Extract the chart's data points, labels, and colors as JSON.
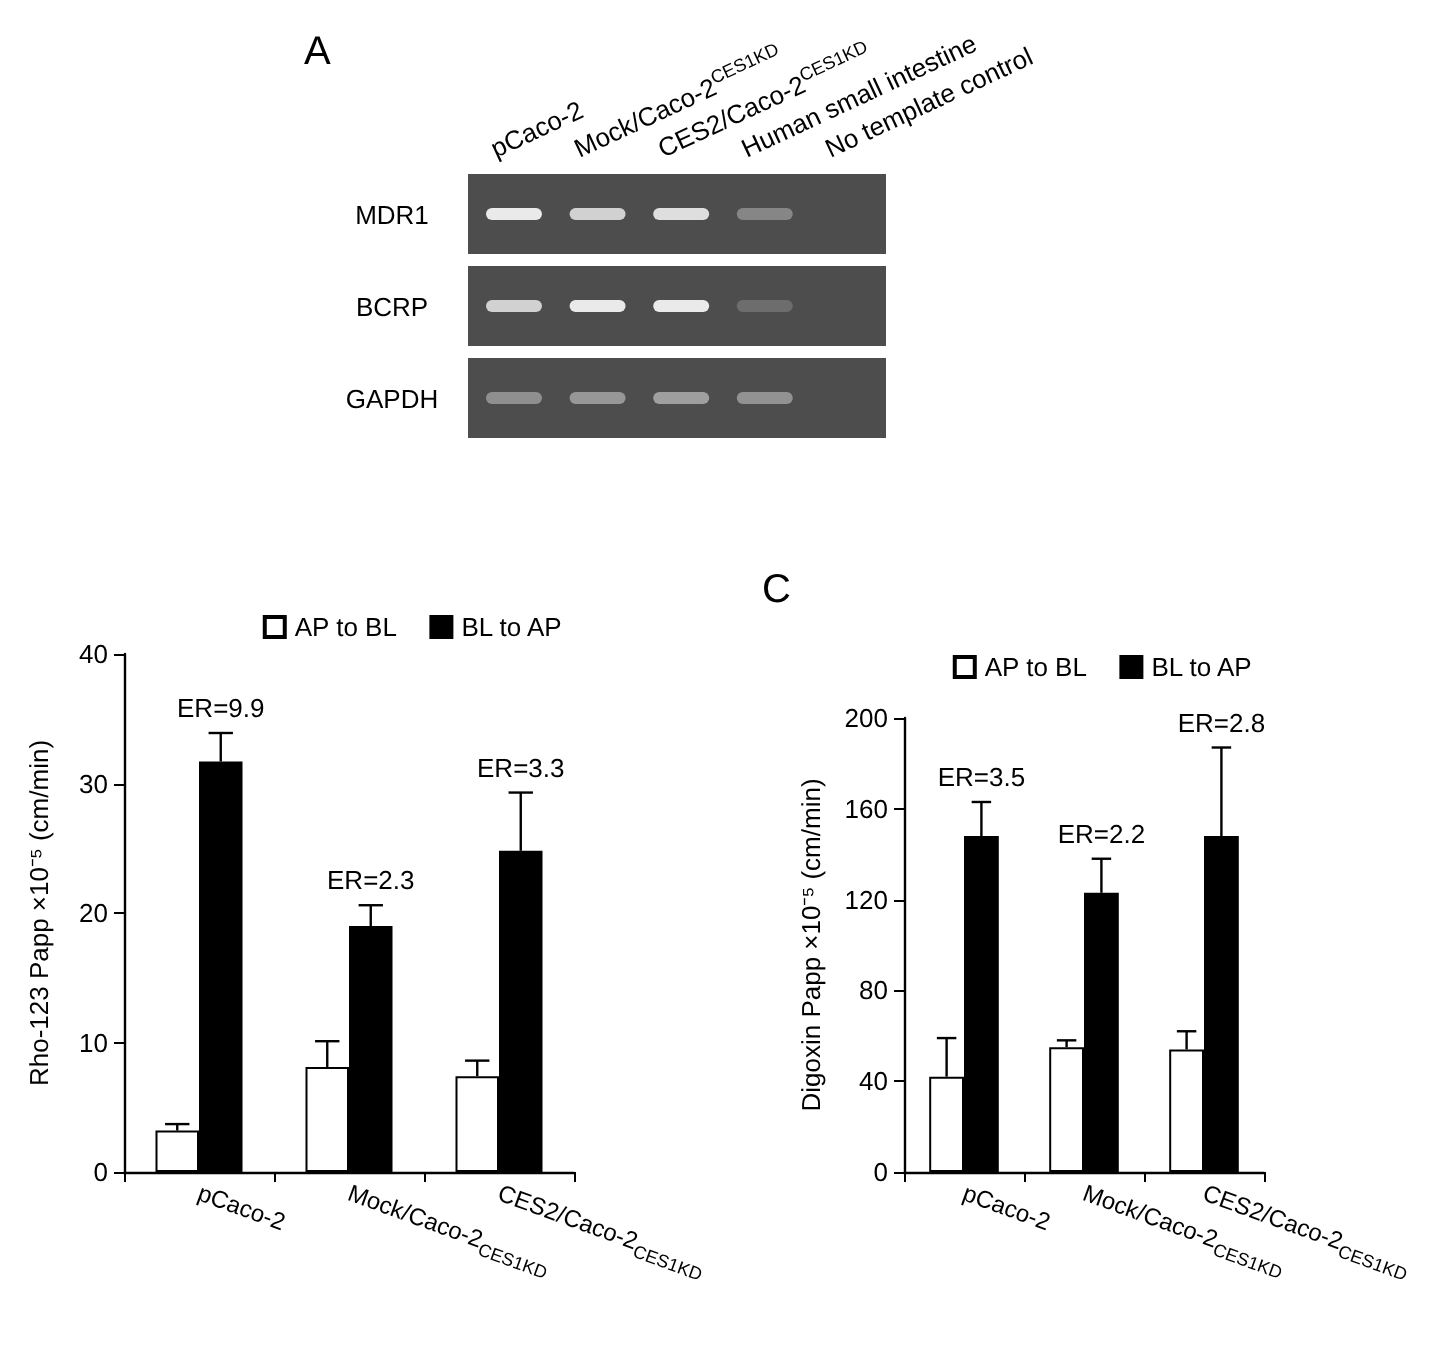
{
  "chart_data": [
    {
      "type": "other",
      "title": "A",
      "categories": [
        "pCaco-2",
        "Mock/Caco-2$^{CES1KD}$",
        "CES2/Caco-2$^{CES1KD}$",
        "Human small intestine",
        "No template control"
      ],
      "y_categories": [
        "MDR1",
        "BCRP",
        "GAPDH"
      ]
    },
    {
      "type": "bar",
      "ylabel": "Rho-123 Papp ×10⁻⁵ (cm/min)",
      "categories": [
        "pCaco-2",
        "Mock/Caco-2$_{CES1KD}$",
        "CES2/Caco-2$_{CES1KD}$"
      ],
      "series": [
        {
          "name": "AP to BL",
          "color": "#ffffff",
          "values": [
            3.2,
            8.1,
            7.4
          ],
          "errors": [
            [
              3.2,
              3.7
            ],
            [
              8.1,
              10.1
            ],
            [
              7.4,
              8.6
            ]
          ]
        },
        {
          "name": "BL to AP",
          "color": "#000000",
          "values": [
            31.7,
            19.0,
            24.8
          ],
          "errors": [
            [
              31.7,
              33.9
            ],
            [
              19.0,
              20.6
            ],
            [
              24.8,
              29.3
            ]
          ]
        }
      ],
      "ylim": [
        0,
        40
      ],
      "yticks": [
        0,
        10,
        20,
        30,
        40
      ],
      "legend": "top right",
      "annotations": [
        "ER=9.9",
        "ER=2.3",
        "ER=3.3"
      ]
    },
    {
      "type": "bar",
      "title": "C",
      "ylabel": "Digoxin Papp ×10⁻⁵ (cm/min)",
      "categories": [
        "pCaco-2",
        "Mock/Caco-2$_{CES1KD}$",
        "CES2/Caco-2$_{CES1KD}$"
      ],
      "series": [
        {
          "name": "AP to BL",
          "color": "#ffffff",
          "values": [
            42,
            55,
            54
          ],
          "errors": [
            [
              42,
              59
            ],
            [
              55,
              58
            ],
            [
              54,
              62
            ]
          ]
        },
        {
          "name": "BL to AP",
          "color": "#000000",
          "values": [
            148,
            123,
            148
          ],
          "errors": [
            [
              148,
              163
            ],
            [
              123,
              138
            ],
            [
              148,
              187
            ]
          ]
        }
      ],
      "ylim": [
        0,
        200
      ],
      "yticks": [
        0,
        40,
        80,
        120,
        160,
        200
      ],
      "legend": "top right",
      "annotations": [
        "ER=3.5",
        "ER=2.2",
        "ER=2.8"
      ]
    }
  ]
}
